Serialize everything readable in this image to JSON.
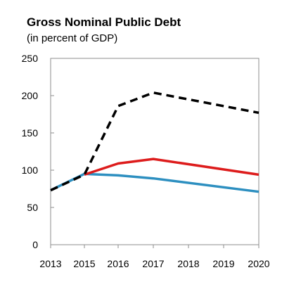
{
  "chart_data": {
    "type": "line",
    "title": "Gross Nominal Public Debt",
    "subtitle": "(in percent of GDP)",
    "xlabel": "",
    "ylabel": "",
    "x": [
      2013,
      2015,
      2016,
      2017,
      2018,
      2019,
      2020
    ],
    "x_tick_labels": [
      "2013",
      "2015",
      "2016",
      "2017",
      "2018",
      "2019",
      "2020"
    ],
    "yticks": [
      0,
      50,
      100,
      150,
      200,
      250
    ],
    "ylim": [
      0,
      250
    ],
    "grid": false,
    "legend": "none",
    "series": [
      {
        "color": "#000000",
        "style": "dashed",
        "points": [
          [
            2013,
            73
          ],
          [
            2015,
            94
          ],
          [
            2016,
            186
          ],
          [
            2017,
            204
          ],
          [
            2020,
            177
          ]
        ]
      },
      {
        "color": "#dd1c1c",
        "style": "solid",
        "points": [
          [
            2015,
            94
          ],
          [
            2016,
            109
          ],
          [
            2017,
            115
          ],
          [
            2020,
            94
          ]
        ]
      },
      {
        "color": "#2d8fc0",
        "style": "solid",
        "points": [
          [
            2013,
            73
          ],
          [
            2015,
            95
          ],
          [
            2016,
            93
          ],
          [
            2017,
            89
          ],
          [
            2020,
            71
          ]
        ]
      }
    ]
  }
}
